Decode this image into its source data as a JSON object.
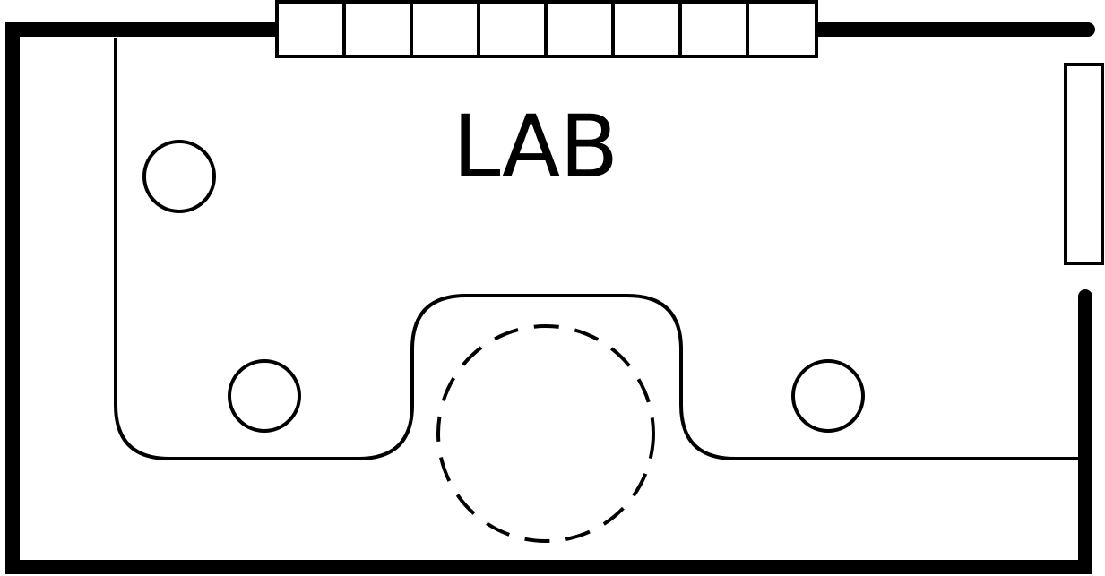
{
  "room": {
    "label": "LAB"
  },
  "colors": {
    "stroke": "#000000",
    "background": "#ffffff"
  },
  "symbols": {
    "window": "window-symbol",
    "sink": "sink-circle-symbol",
    "table": "table-symbol",
    "dashed_circle": "dashed-circle-symbol"
  }
}
